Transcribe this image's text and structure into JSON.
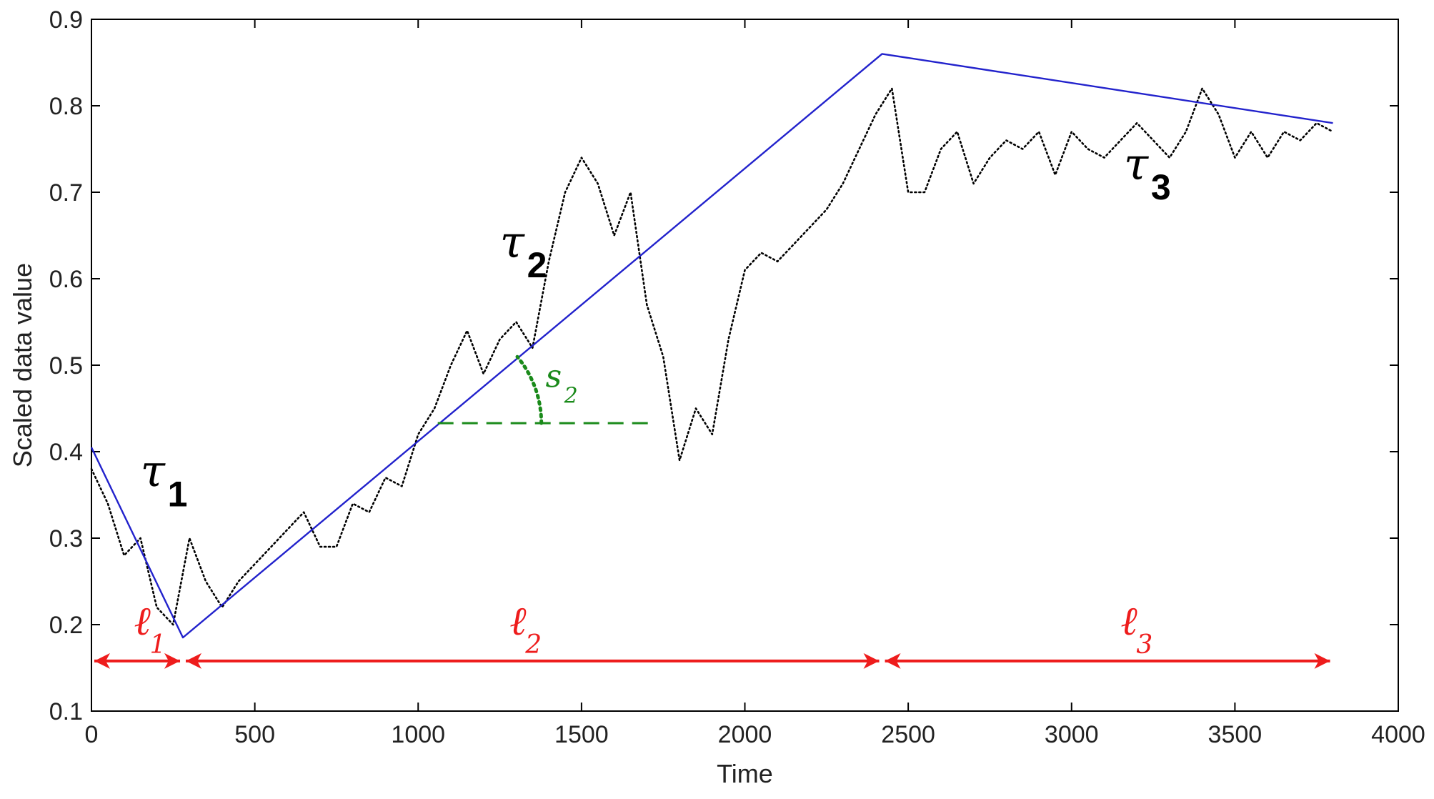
{
  "chart_data": {
    "type": "line",
    "title": "",
    "xlabel": "Time",
    "ylabel": "Scaled data value",
    "xlim": [
      0,
      4000
    ],
    "ylim": [
      0.1,
      0.9
    ],
    "xticks": [
      0,
      500,
      1000,
      1500,
      2000,
      2500,
      3000,
      3500,
      4000
    ],
    "yticks": [
      0.1,
      0.2,
      0.3,
      0.4,
      0.5,
      0.6,
      0.7,
      0.8,
      0.9
    ],
    "xtick_labels": [
      "0",
      "500",
      "1000",
      "1500",
      "2000",
      "2500",
      "3000",
      "3500",
      "4000"
    ],
    "ytick_labels": [
      "0.1",
      "0.2",
      "0.3",
      "0.4",
      "0.5",
      "0.6",
      "0.7",
      "0.8",
      "0.9"
    ],
    "grid": false,
    "series": [
      {
        "style": "dotted",
        "color": "#000000",
        "x": [
          0,
          50,
          100,
          150,
          200,
          250,
          300,
          350,
          400,
          450,
          500,
          550,
          600,
          650,
          700,
          750,
          800,
          850,
          900,
          950,
          1000,
          1050,
          1100,
          1150,
          1200,
          1250,
          1300,
          1350,
          1400,
          1450,
          1500,
          1550,
          1600,
          1650,
          1700,
          1750,
          1800,
          1850,
          1900,
          1950,
          2000,
          2050,
          2100,
          2150,
          2200,
          2250,
          2300,
          2350,
          2400,
          2450,
          2500,
          2550,
          2600,
          2650,
          2700,
          2750,
          2800,
          2850,
          2900,
          2950,
          3000,
          3050,
          3100,
          3150,
          3200,
          3250,
          3300,
          3350,
          3400,
          3450,
          3500,
          3550,
          3600,
          3650,
          3700,
          3750,
          3800
        ],
        "y": [
          0.38,
          0.34,
          0.28,
          0.3,
          0.22,
          0.2,
          0.3,
          0.25,
          0.22,
          0.25,
          0.27,
          0.29,
          0.31,
          0.33,
          0.29,
          0.29,
          0.34,
          0.33,
          0.37,
          0.36,
          0.42,
          0.45,
          0.5,
          0.54,
          0.49,
          0.53,
          0.55,
          0.52,
          0.62,
          0.7,
          0.74,
          0.71,
          0.65,
          0.7,
          0.57,
          0.51,
          0.39,
          0.45,
          0.42,
          0.53,
          0.61,
          0.63,
          0.62,
          0.64,
          0.66,
          0.68,
          0.71,
          0.75,
          0.79,
          0.82,
          0.7,
          0.7,
          0.75,
          0.77,
          0.71,
          0.74,
          0.76,
          0.75,
          0.77,
          0.72,
          0.77,
          0.75,
          0.74,
          0.76,
          0.78,
          0.76,
          0.74,
          0.77,
          0.82,
          0.79,
          0.74,
          0.77,
          0.74,
          0.77,
          0.76,
          0.78,
          0.77
        ]
      },
      {
        "style": "solid",
        "color": "#2222cc",
        "x": [
          0,
          280,
          2420,
          3800
        ],
        "y": [
          0.405,
          0.185,
          0.86,
          0.78
        ]
      }
    ],
    "annotations": {
      "segments": [
        {
          "symbol": "τ",
          "index": "1",
          "x": 150,
          "y": 0.36
        },
        {
          "symbol": "τ",
          "index": "2",
          "x": 1250,
          "y": 0.625
        },
        {
          "symbol": "τ",
          "index": "3",
          "x": 3160,
          "y": 0.715
        }
      ],
      "lengths": [
        {
          "symbol": "ℓ",
          "index": "1",
          "x_from": 0,
          "x_to": 280,
          "y": 0.158,
          "label_x": 130,
          "label_y": 0.2
        },
        {
          "symbol": "ℓ",
          "index": "2",
          "x_from": 280,
          "x_to": 2420,
          "y": 0.158,
          "label_x": 1280,
          "label_y": 0.2
        },
        {
          "symbol": "ℓ",
          "index": "3",
          "x_from": 2420,
          "x_to": 3800,
          "y": 0.158,
          "label_x": 3150,
          "label_y": 0.2
        }
      ],
      "slope": {
        "symbol": "s",
        "index": "2",
        "x_vertex": 1060,
        "y_vertex": 0.433,
        "x_end": 1720,
        "label_x": 1390,
        "label_y": 0.475
      },
      "colors": {
        "length_arrows": "#ee1c1c",
        "slope": "#1a8a1a",
        "axes": "#000000"
      }
    }
  }
}
